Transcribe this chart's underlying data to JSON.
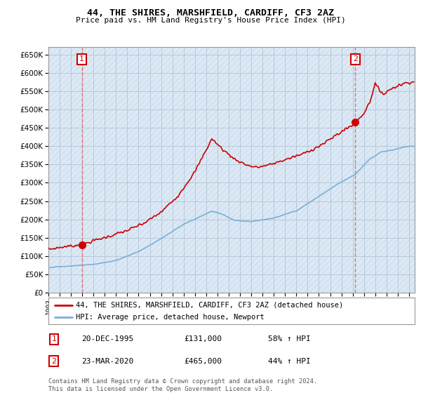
{
  "title": "44, THE SHIRES, MARSHFIELD, CARDIFF, CF3 2AZ",
  "subtitle": "Price paid vs. HM Land Registry's House Price Index (HPI)",
  "ylabel_ticks": [
    "£0",
    "£50K",
    "£100K",
    "£150K",
    "£200K",
    "£250K",
    "£300K",
    "£350K",
    "£400K",
    "£450K",
    "£500K",
    "£550K",
    "£600K",
    "£650K"
  ],
  "ytick_values": [
    0,
    50000,
    100000,
    150000,
    200000,
    250000,
    300000,
    350000,
    400000,
    450000,
    500000,
    550000,
    600000,
    650000
  ],
  "ylim": [
    0,
    670000
  ],
  "xlim_start": 1993.0,
  "xlim_end": 2025.5,
  "sale1_date": 1995.97,
  "sale1_price": 131000,
  "sale2_date": 2020.23,
  "sale2_price": 465000,
  "legend_line1": "44, THE SHIRES, MARSHFIELD, CARDIFF, CF3 2AZ (detached house)",
  "legend_line2": "HPI: Average price, detached house, Newport",
  "annotation1_label": "1",
  "annotation1_date": "20-DEC-1995",
  "annotation1_price": "£131,000",
  "annotation1_hpi": "58% ↑ HPI",
  "annotation2_label": "2",
  "annotation2_date": "23-MAR-2020",
  "annotation2_price": "£465,000",
  "annotation2_hpi": "44% ↑ HPI",
  "footer": "Contains HM Land Registry data © Crown copyright and database right 2024.\nThis data is licensed under the Open Government Licence v3.0.",
  "house_color": "#cc0000",
  "hpi_color": "#7bafd4",
  "chart_bg_color": "#dce9f5",
  "hatch_color": "#c8d8ea",
  "grid_color": "#b0c4d8",
  "vline_color": "#e07070"
}
